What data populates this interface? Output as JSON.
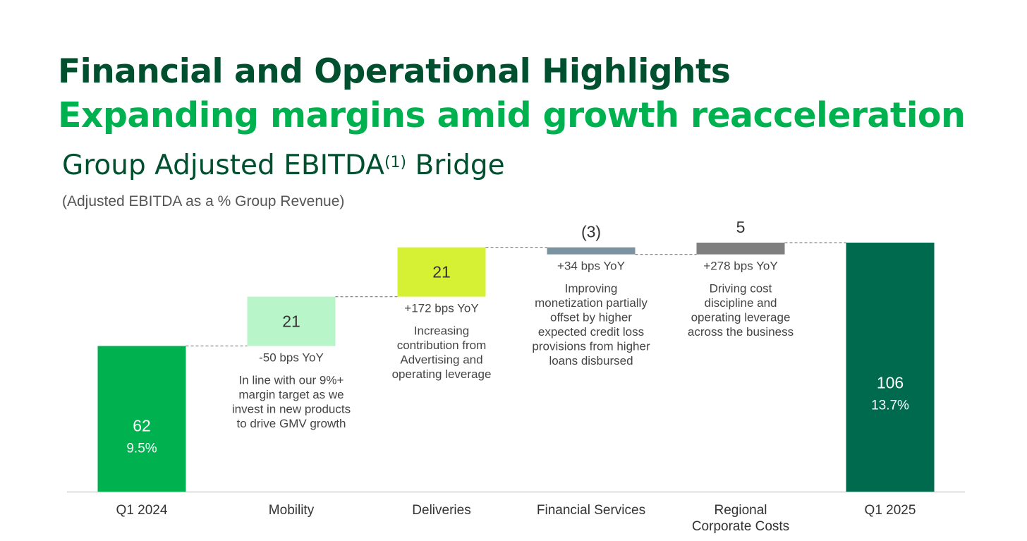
{
  "page": {
    "title": "Financial and Operational Highlights",
    "subtitle": "Expanding margins amid growth reacceleration",
    "chart_title_main": "Group Adjusted EBITDA",
    "chart_title_sup": "(1)",
    "chart_title_end": "Bridge",
    "chart_note": "(Adjusted EBITDA as a % Group Revenue)"
  },
  "chart_data": {
    "type": "bar",
    "subtype": "waterfall",
    "ylim": [
      0,
      106
    ],
    "categories": [
      [
        "Q1 2024"
      ],
      [
        "Mobility"
      ],
      [
        "Deliveries"
      ],
      [
        "Financial Services"
      ],
      [
        "Regional",
        "Corporate Costs"
      ],
      [
        "Q1 2025"
      ]
    ],
    "bars": [
      {
        "kind": "total",
        "value": 62,
        "label": "62",
        "pct": "9.5%",
        "color": "#00B14F",
        "text_color": "#ffffff"
      },
      {
        "kind": "delta",
        "value": 21,
        "label": "21",
        "color": "#B8F5C8",
        "text_color": "#333333",
        "bps": "-50 bps YoY",
        "note": [
          "In line with our 9%+",
          "margin target as we",
          "invest in new products",
          "to drive GMV growth"
        ]
      },
      {
        "kind": "delta",
        "value": 21,
        "label": "21",
        "color": "#D6F033",
        "text_color": "#333333",
        "bps": "+172 bps YoY",
        "note": [
          "Increasing",
          "contribution from",
          "Advertising and",
          "operating leverage"
        ]
      },
      {
        "kind": "delta",
        "value": -3,
        "label": "(3)",
        "color": "#7B93A0",
        "text_color": "#333333",
        "bps": "+34 bps YoY",
        "note": [
          "Improving",
          "monetization partially",
          "offset by higher",
          "expected credit loss",
          "provisions from higher",
          "loans disbursed"
        ]
      },
      {
        "kind": "delta",
        "value": 5,
        "label": "5",
        "color": "#7F7F7F",
        "text_color": "#333333",
        "bps": "+278 bps YoY",
        "note": [
          "Driving cost",
          "discipline and",
          "operating leverage",
          "across the business"
        ]
      },
      {
        "kind": "total",
        "value": 106,
        "label": "106",
        "pct": "13.7%",
        "color": "#006A4E",
        "text_color": "#ffffff"
      }
    ],
    "connector_color": "#888888",
    "baseline_color": "#D0D0D0"
  }
}
